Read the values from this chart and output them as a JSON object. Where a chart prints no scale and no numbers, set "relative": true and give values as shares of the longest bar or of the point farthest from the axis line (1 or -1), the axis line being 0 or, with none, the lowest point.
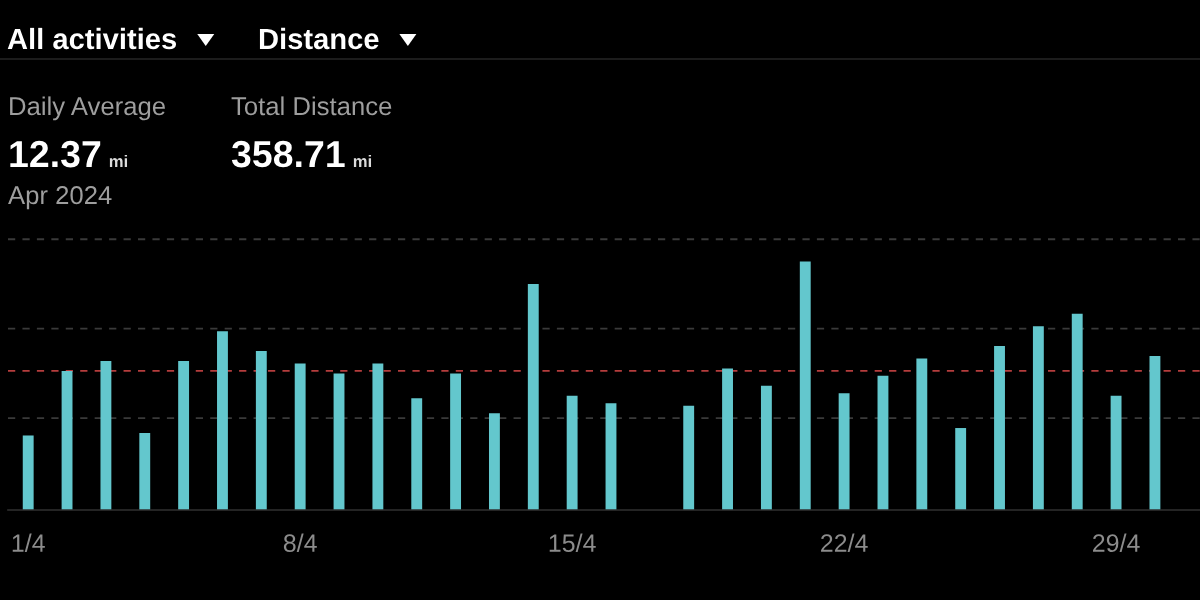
{
  "chart_data": {
    "type": "bar",
    "relative": true,
    "categories": [
      "1/4",
      null,
      null,
      null,
      null,
      null,
      null,
      "8/4",
      null,
      null,
      null,
      null,
      null,
      null,
      "15/4",
      null,
      null,
      null,
      null,
      null,
      null,
      "22/4",
      null,
      null,
      null,
      null,
      null,
      null,
      "29/4",
      null
    ],
    "values": [
      0.3,
      0.56,
      0.6,
      0.31,
      0.6,
      0.72,
      0.64,
      0.59,
      0.55,
      0.59,
      0.45,
      0.55,
      0.39,
      0.91,
      0.46,
      0.43,
      0,
      0.42,
      0.57,
      0.5,
      1,
      0.47,
      0.54,
      0.61,
      0.33,
      0.66,
      0.74,
      0.79,
      0.46,
      0.62
    ],
    "color": "#63c7cd",
    "tick_labels": "x",
    "ref_lines": [
      {
        "axis": "y",
        "value": 0.37,
        "color": "#3a3a3a",
        "line_style": "dashed"
      },
      {
        "axis": "y",
        "value": 0.73,
        "color": "#3a3a3a",
        "line_style": "dashed"
      },
      {
        "axis": "y",
        "value": 1.09,
        "color": "#3a3a3a",
        "line_style": "dashed"
      },
      {
        "axis": "y",
        "value": 0.56,
        "color": "#b53d3d",
        "line_style": "dashed"
      }
    ],
    "annotations": [
      "All activities",
      "Distance",
      "Daily Average",
      "12.37",
      "mi",
      "Total Distance",
      "358.71",
      "mi",
      "Apr 2024"
    ]
  }
}
